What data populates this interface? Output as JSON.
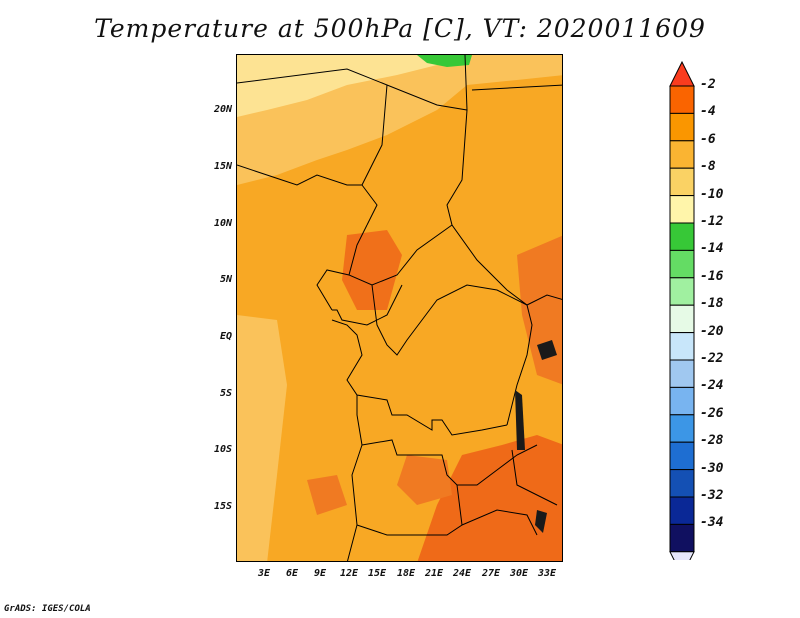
{
  "title": "Temperature at 500hPa [C], VT: 2020011609",
  "footer": "GrADS: IGES/COLA",
  "lat_labels": [
    "20N",
    "15N",
    "10N",
    "5N",
    "EQ",
    "5S",
    "10S",
    "15S"
  ],
  "lon_labels": [
    "3E",
    "6E",
    "9E",
    "12E",
    "15E",
    "18E",
    "21E",
    "24E",
    "27E",
    "30E",
    "33E"
  ],
  "colorbar": {
    "labels": [
      "-2",
      "-4",
      "-6",
      "-8",
      "-10",
      "-12",
      "-14",
      "-16",
      "-18",
      "-20",
      "-22",
      "-24",
      "-26",
      "-28",
      "-30",
      "-32",
      "-34"
    ],
    "colors": [
      "#fa3c1e",
      "#fa6400",
      "#fa9600",
      "#fab432",
      "#fad264",
      "#fff5aa",
      "#37c837",
      "#64dc64",
      "#a0f0a0",
      "#e6fae6",
      "#c8e6fa",
      "#a0c8f0",
      "#78b4f0",
      "#3c96e6",
      "#1e6ed2",
      "#1450b4",
      "#0a2896",
      "#101060",
      "#e6e6fa"
    ]
  },
  "map": {
    "background_color": "#f8a824",
    "region": "Central Africa, 0E-35E, 20S-25N"
  }
}
